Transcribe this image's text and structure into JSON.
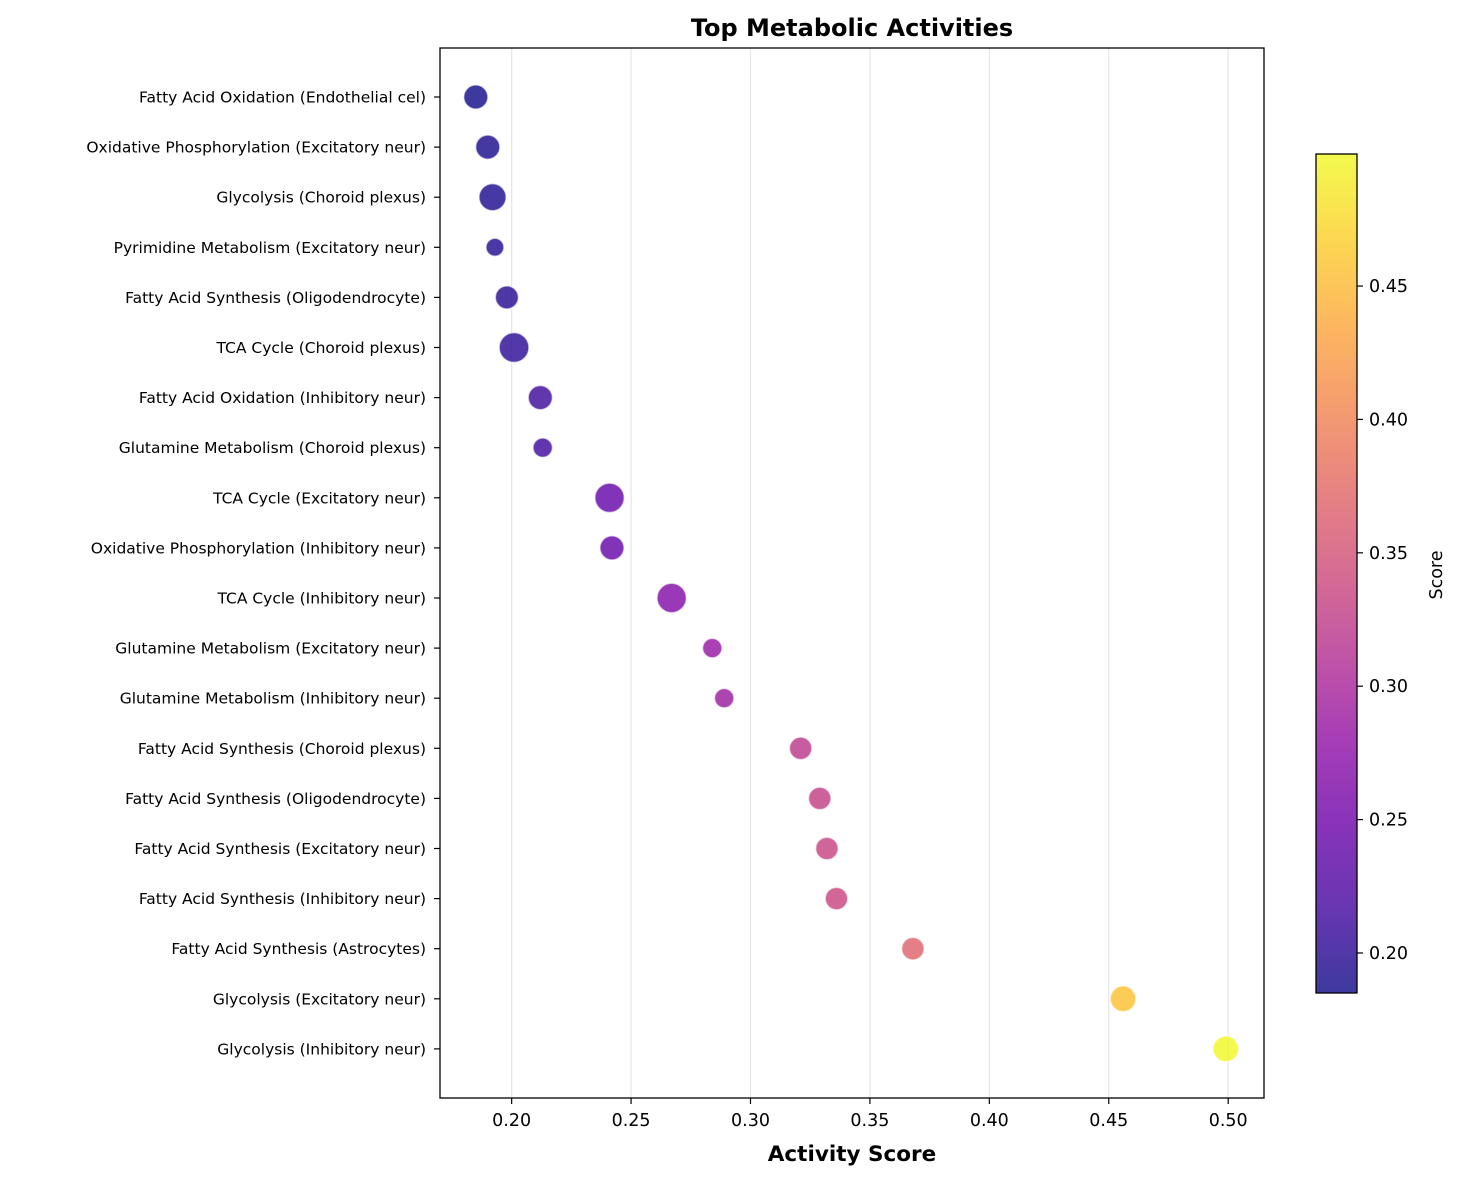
{
  "chart_data": {
    "type": "scatter",
    "title": "Top Metabolic Activities",
    "xlabel": "Activity Score",
    "ylabel": "",
    "xlim": [
      0.17,
      0.515
    ],
    "x_ticks": [
      "0.20",
      "0.25",
      "0.30",
      "0.35",
      "0.40",
      "0.45",
      "0.50"
    ],
    "x_tick_values": [
      0.2,
      0.25,
      0.3,
      0.35,
      0.4,
      0.45,
      0.5
    ],
    "grid": "x-axis vertical gridlines",
    "colormap": "plasma",
    "colorbar": {
      "label": "Score",
      "range": [
        0.185,
        0.4995
      ],
      "ticks": [
        "0.20",
        "0.25",
        "0.30",
        "0.35",
        "0.40",
        "0.45"
      ],
      "tick_values": [
        0.2,
        0.25,
        0.3,
        0.35,
        0.4,
        0.45
      ],
      "placement": "right"
    },
    "points": [
      {
        "label": "Fatty Acid Oxidation (Endothelial cel)",
        "x": 0.185,
        "size": 2.0
      },
      {
        "label": "Oxidative Phosphorylation (Excitatory neur)",
        "x": 0.19,
        "size": 2.0
      },
      {
        "label": "Glycolysis (Choroid plexus)",
        "x": 0.192,
        "size": 2.6
      },
      {
        "label": "Pyrimidine Metabolism (Excitatory neur)",
        "x": 0.193,
        "size": 1.0
      },
      {
        "label": "Fatty Acid Synthesis (Oligodendrocyte)",
        "x": 0.198,
        "size": 1.8
      },
      {
        "label": "TCA Cycle (Choroid plexus)",
        "x": 0.201,
        "size": 3.2
      },
      {
        "label": "Fatty Acid Oxidation (Inhibitory neur)",
        "x": 0.212,
        "size": 2.0
      },
      {
        "label": "Glutamine Metabolism (Choroid plexus)",
        "x": 0.213,
        "size": 1.2
      },
      {
        "label": "TCA Cycle (Excitatory neur)",
        "x": 0.241,
        "size": 3.1
      },
      {
        "label": "Oxidative Phosphorylation (Inhibitory neur)",
        "x": 0.242,
        "size": 2.0
      },
      {
        "label": "TCA Cycle (Inhibitory neur)",
        "x": 0.267,
        "size": 3.1
      },
      {
        "label": "Glutamine Metabolism (Excitatory neur)",
        "x": 0.284,
        "size": 1.2
      },
      {
        "label": "Glutamine Metabolism (Inhibitory neur)",
        "x": 0.289,
        "size": 1.2
      },
      {
        "label": "Fatty Acid Synthesis (Choroid plexus)",
        "x": 0.321,
        "size": 1.7
      },
      {
        "label": "Fatty Acid Synthesis (Oligodendrocyte)",
        "x": 0.329,
        "size": 1.7
      },
      {
        "label": "Fatty Acid Synthesis (Excitatory neur)",
        "x": 0.332,
        "size": 1.7
      },
      {
        "label": "Fatty Acid Synthesis (Inhibitory neur)",
        "x": 0.336,
        "size": 1.7
      },
      {
        "label": "Fatty Acid Synthesis (Astrocytes)",
        "x": 0.368,
        "size": 1.7
      },
      {
        "label": "Glycolysis (Excitatory neur)",
        "x": 0.456,
        "size": 2.3
      },
      {
        "label": "Glycolysis (Inhibitory neur)",
        "x": 0.499,
        "size": 2.3
      }
    ]
  }
}
